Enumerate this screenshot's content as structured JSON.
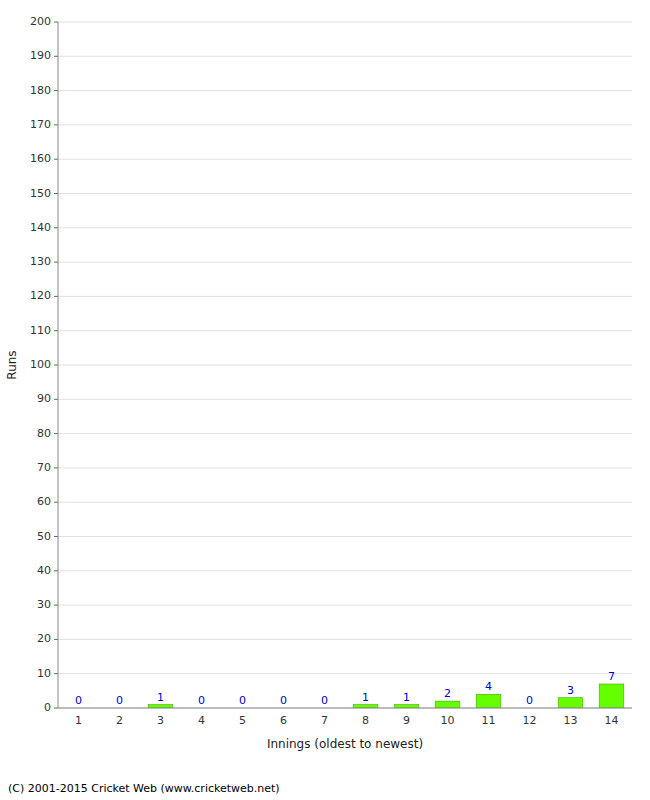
{
  "chart_data": {
    "type": "bar",
    "xlabel": "Innings (oldest to newest)",
    "ylabel": "Runs",
    "categories": [
      1,
      2,
      3,
      4,
      5,
      6,
      7,
      8,
      9,
      10,
      11,
      12,
      13,
      14
    ],
    "values": [
      0,
      0,
      1,
      0,
      0,
      0,
      0,
      1,
      1,
      2,
      4,
      0,
      3,
      7
    ],
    "color": "#66ff00",
    "ylim": [
      0,
      200
    ],
    "yticks": [
      0,
      10,
      20,
      30,
      40,
      50,
      60,
      70,
      80,
      90,
      100,
      110,
      120,
      130,
      140,
      150,
      160,
      170,
      180,
      190,
      200
    ],
    "grid": true,
    "data_labels": true,
    "annotations": [
      "(C) 2001-2015 Cricket Web (www.cricketweb.net)"
    ]
  }
}
